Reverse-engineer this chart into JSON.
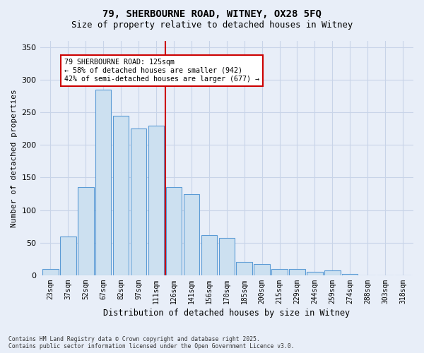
{
  "title_line1": "79, SHERBOURNE ROAD, WITNEY, OX28 5FQ",
  "title_line2": "Size of property relative to detached houses in Witney",
  "xlabel": "Distribution of detached houses by size in Witney",
  "ylabel": "Number of detached properties",
  "categories": [
    "23sqm",
    "37sqm",
    "52sqm",
    "67sqm",
    "82sqm",
    "97sqm",
    "111sqm",
    "126sqm",
    "141sqm",
    "156sqm",
    "170sqm",
    "185sqm",
    "200sqm",
    "215sqm",
    "229sqm",
    "244sqm",
    "259sqm",
    "274sqm",
    "288sqm",
    "303sqm",
    "318sqm"
  ],
  "values": [
    10,
    60,
    135,
    285,
    245,
    225,
    230,
    135,
    125,
    62,
    57,
    20,
    17,
    10,
    10,
    5,
    7,
    2,
    0,
    0,
    0
  ],
  "bar_color": "#cce0f0",
  "bar_edge_color": "#5b9bd5",
  "vline_color": "#cc0000",
  "annotation_text": "79 SHERBOURNE ROAD: 125sqm\n← 58% of detached houses are smaller (942)\n42% of semi-detached houses are larger (677) →",
  "annotation_box_color": "#ffffff",
  "annotation_box_edge": "#cc0000",
  "grid_color": "#c8d4e8",
  "background_color": "#e8eef8",
  "ylim": [
    0,
    360
  ],
  "yticks": [
    0,
    50,
    100,
    150,
    200,
    250,
    300,
    350
  ],
  "footer_text": "Contains HM Land Registry data © Crown copyright and database right 2025.\nContains public sector information licensed under the Open Government Licence v3.0."
}
